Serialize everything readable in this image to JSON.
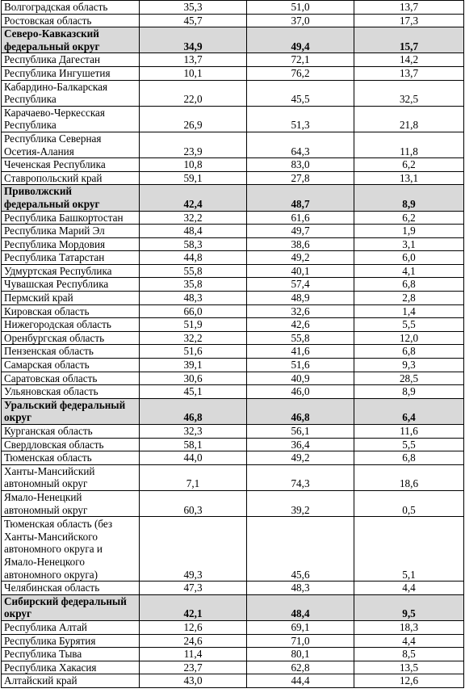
{
  "rows": [
    {
      "name": "Волгоградская область",
      "v1": "35,3",
      "v2": "51,0",
      "v3": "13,7",
      "lines": 1
    },
    {
      "name": "Ростовская область",
      "v1": "45,7",
      "v2": "37,0",
      "v3": "17,3",
      "lines": 1
    },
    {
      "name": "Северо-Кавказский федеральный округ",
      "v1": "34,9",
      "v2": "49,4",
      "v3": "15,7",
      "lines": 2,
      "group": true
    },
    {
      "name": "Республика Дагестан",
      "v1": "13,7",
      "v2": "72,1",
      "v3": "14,2",
      "lines": 1
    },
    {
      "name": "Республика Ингушетия",
      "v1": "10,1",
      "v2": "76,2",
      "v3": "13,7",
      "lines": 1
    },
    {
      "name": "Кабардино-Балкарская Республика",
      "v1": "22,0",
      "v2": "45,5",
      "v3": "32,5",
      "lines": 2
    },
    {
      "name": "Карачаево-Черкесская Республика",
      "v1": "26,9",
      "v2": "51,3",
      "v3": "21,8",
      "lines": 2
    },
    {
      "name": "Республика Северная Осетия-Алания",
      "v1": "23,9",
      "v2": "64,3",
      "v3": "11,8",
      "lines": 2
    },
    {
      "name": "Чеченская Республика",
      "v1": "10,8",
      "v2": "83,0",
      "v3": "6,2",
      "lines": 1
    },
    {
      "name": "Ставропольский край",
      "v1": "59,1",
      "v2": "27,8",
      "v3": "13,1",
      "lines": 1
    },
    {
      "name": "Приволжский федеральный округ",
      "v1": "42,4",
      "v2": "48,7",
      "v3": "8,9",
      "lines": 2,
      "group": true
    },
    {
      "name": "Республика Башкортостан",
      "v1": "32,2",
      "v2": "61,6",
      "v3": "6,2",
      "lines": 1
    },
    {
      "name": "Республика Марий Эл",
      "v1": "48,4",
      "v2": "49,7",
      "v3": "1,9",
      "lines": 1
    },
    {
      "name": "Республика Мордовия",
      "v1": "58,3",
      "v2": "38,6",
      "v3": "3,1",
      "lines": 1
    },
    {
      "name": "Республика Татарстан",
      "v1": "44,8",
      "v2": "49,2",
      "v3": "6,0",
      "lines": 1
    },
    {
      "name": "Удмуртская Республика",
      "v1": "55,8",
      "v2": "40,1",
      "v3": "4,1",
      "lines": 1
    },
    {
      "name": "Чувашская Республика",
      "v1": "35,8",
      "v2": "57,4",
      "v3": "6,8",
      "lines": 1
    },
    {
      "name": "Пермский край",
      "v1": "48,3",
      "v2": "48,9",
      "v3": "2,8",
      "lines": 1
    },
    {
      "name": "Кировская область",
      "v1": "66,0",
      "v2": "32,6",
      "v3": "1,4",
      "lines": 1
    },
    {
      "name": "Нижегородская область",
      "v1": "51,9",
      "v2": "42,6",
      "v3": "5,5",
      "lines": 1
    },
    {
      "name": "Оренбургская область",
      "v1": "32,2",
      "v2": "55,8",
      "v3": "12,0",
      "lines": 1
    },
    {
      "name": "Пензенская область",
      "v1": "51,6",
      "v2": "41,6",
      "v3": "6,8",
      "lines": 1
    },
    {
      "name": "Самарская область",
      "v1": "39,1",
      "v2": "51,6",
      "v3": "9,3",
      "lines": 1
    },
    {
      "name": "Саратовская область",
      "v1": "30,6",
      "v2": "40,9",
      "v3": "28,5",
      "lines": 1
    },
    {
      "name": "Ульяновская область",
      "v1": "45,1",
      "v2": "46,0",
      "v3": "8,9",
      "lines": 1
    },
    {
      "name": "Уральский федеральный округ",
      "v1": "46,8",
      "v2": "46,8",
      "v3": "6,4",
      "lines": 2,
      "group": true
    },
    {
      "name": "Курганская область",
      "v1": "32,3",
      "v2": "56,1",
      "v3": "11,6",
      "lines": 1
    },
    {
      "name": "Свердловская область",
      "v1": "58,1",
      "v2": "36,4",
      "v3": "5,5",
      "lines": 1
    },
    {
      "name": "Тюменская область",
      "v1": "44,0",
      "v2": "49,2",
      "v3": "6,8",
      "lines": 1
    },
    {
      "name": "Ханты-Мансийский автономный округ",
      "v1": "7,1",
      "v2": "74,3",
      "v3": "18,6",
      "lines": 2
    },
    {
      "name": "Ямало-Ненецкий автономный округ",
      "v1": "60,3",
      "v2": "39,2",
      "v3": "0,5",
      "lines": 2
    },
    {
      "name": "Тюменская область (без Ханты-Мансийского автономного округа и Ямало-Ненецкого автономного округа)",
      "v1": "49,3",
      "v2": "45,6",
      "v3": "5,1",
      "lines": 5
    },
    {
      "name": "Челябинская область",
      "v1": "47,3",
      "v2": "48,3",
      "v3": "4,4",
      "lines": 1
    },
    {
      "name": "Сибирский федеральный округ",
      "v1": "42,1",
      "v2": "48,4",
      "v3": "9,5",
      "lines": 2,
      "group": true
    },
    {
      "name": "Республика Алтай",
      "v1": "12,6",
      "v2": "69,1",
      "v3": "18,3",
      "lines": 1
    },
    {
      "name": "Республика Бурятия",
      "v1": "24,6",
      "v2": "71,0",
      "v3": "4,4",
      "lines": 1
    },
    {
      "name": "Республика Тыва",
      "v1": "11,4",
      "v2": "80,1",
      "v3": "8,5",
      "lines": 1
    },
    {
      "name": "Республика Хакасия",
      "v1": "23,7",
      "v2": "62,8",
      "v3": "13,5",
      "lines": 1
    },
    {
      "name": "Алтайский край",
      "v1": "43,0",
      "v2": "44,4",
      "v3": "12,6",
      "lines": 1
    }
  ]
}
